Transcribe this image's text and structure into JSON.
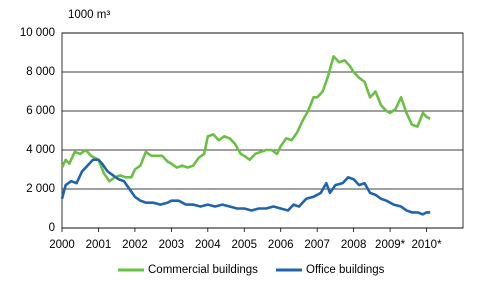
{
  "chart_data": {
    "type": "line",
    "y_label": "1000 m³",
    "xlim": [
      2000,
      2011
    ],
    "xticks": [
      2000,
      2001,
      2002,
      2003,
      2004,
      2005,
      2006,
      2007,
      2008,
      {
        "value": 2009,
        "label": "2009*"
      },
      {
        "value": 2010,
        "label": "2010*"
      }
    ],
    "ylim": [
      0,
      10000
    ],
    "yticks": [
      0,
      {
        "value": 2000,
        "label": "2 000"
      },
      {
        "value": 4000,
        "label": "4 000"
      },
      {
        "value": 6000,
        "label": "6 000"
      },
      {
        "value": 8000,
        "label": "8 000"
      },
      {
        "value": 10000,
        "label": "10 000"
      }
    ],
    "grid": true,
    "legend": "bottom",
    "series": [
      {
        "name": "Commercial buildings",
        "color": "#6cbf45",
        "x": [
          2000.0,
          2000.1,
          2000.2,
          2000.35,
          2000.5,
          2000.65,
          2000.8,
          2001.0,
          2001.15,
          2001.3,
          2001.45,
          2001.6,
          2001.75,
          2001.9,
          2002.0,
          2002.15,
          2002.3,
          2002.45,
          2002.6,
          2002.75,
          2002.9,
          2003.0,
          2003.15,
          2003.3,
          2003.45,
          2003.6,
          2003.75,
          2003.9,
          2004.0,
          2004.15,
          2004.3,
          2004.45,
          2004.6,
          2004.75,
          2004.9,
          2005.0,
          2005.15,
          2005.3,
          2005.45,
          2005.6,
          2005.75,
          2005.9,
          2006.0,
          2006.15,
          2006.3,
          2006.45,
          2006.6,
          2006.75,
          2006.9,
          2007.0,
          2007.15,
          2007.3,
          2007.45,
          2007.6,
          2007.75,
          2007.9,
          2008.0,
          2008.15,
          2008.3,
          2008.45,
          2008.6,
          2008.75,
          2008.9,
          2009.0,
          2009.15,
          2009.3,
          2009.45,
          2009.6,
          2009.75,
          2009.9,
          2010.0,
          2010.1
        ],
        "values": [
          3100,
          3500,
          3300,
          3900,
          3800,
          4000,
          3700,
          3500,
          2800,
          2400,
          2600,
          2700,
          2600,
          2600,
          3000,
          3200,
          3900,
          3700,
          3700,
          3700,
          3400,
          3300,
          3100,
          3200,
          3100,
          3200,
          3600,
          3800,
          4700,
          4800,
          4500,
          4700,
          4600,
          4300,
          3800,
          3700,
          3500,
          3800,
          3900,
          4000,
          4000,
          3800,
          4200,
          4600,
          4500,
          4900,
          5500,
          6000,
          6700,
          6700,
          7000,
          7800,
          8800,
          8500,
          8600,
          8300,
          8000,
          7700,
          7500,
          6700,
          7000,
          6300,
          6000,
          5900,
          6100,
          6700,
          5900,
          5300,
          5200,
          5900,
          5700,
          5600
        ]
      },
      {
        "name": "Office buildings",
        "color": "#1f64ad",
        "x": [
          2000.0,
          2000.1,
          2000.25,
          2000.4,
          2000.55,
          2000.7,
          2000.85,
          2001.0,
          2001.1,
          2001.25,
          2001.4,
          2001.55,
          2001.7,
          2001.85,
          2002.0,
          2002.15,
          2002.3,
          2002.5,
          2002.7,
          2002.9,
          2003.0,
          2003.2,
          2003.4,
          2003.6,
          2003.8,
          2004.0,
          2004.2,
          2004.4,
          2004.6,
          2004.8,
          2005.0,
          2005.2,
          2005.4,
          2005.6,
          2005.8,
          2006.0,
          2006.2,
          2006.35,
          2006.5,
          2006.7,
          2006.9,
          2007.1,
          2007.25,
          2007.35,
          2007.5,
          2007.7,
          2007.85,
          2008.0,
          2008.15,
          2008.3,
          2008.45,
          2008.6,
          2008.75,
          2008.9,
          2009.1,
          2009.3,
          2009.45,
          2009.6,
          2009.75,
          2009.9,
          2010.0,
          2010.1
        ],
        "values": [
          1500,
          2200,
          2400,
          2300,
          2900,
          3200,
          3500,
          3500,
          3300,
          2900,
          2700,
          2500,
          2400,
          2000,
          1600,
          1400,
          1300,
          1300,
          1200,
          1300,
          1400,
          1400,
          1200,
          1200,
          1100,
          1200,
          1100,
          1200,
          1100,
          1000,
          1000,
          900,
          1000,
          1000,
          1100,
          1000,
          900,
          1200,
          1100,
          1500,
          1600,
          1800,
          2300,
          1800,
          2200,
          2300,
          2600,
          2500,
          2200,
          2300,
          1800,
          1700,
          1500,
          1400,
          1200,
          1100,
          900,
          800,
          800,
          700,
          800,
          800
        ]
      }
    ]
  }
}
